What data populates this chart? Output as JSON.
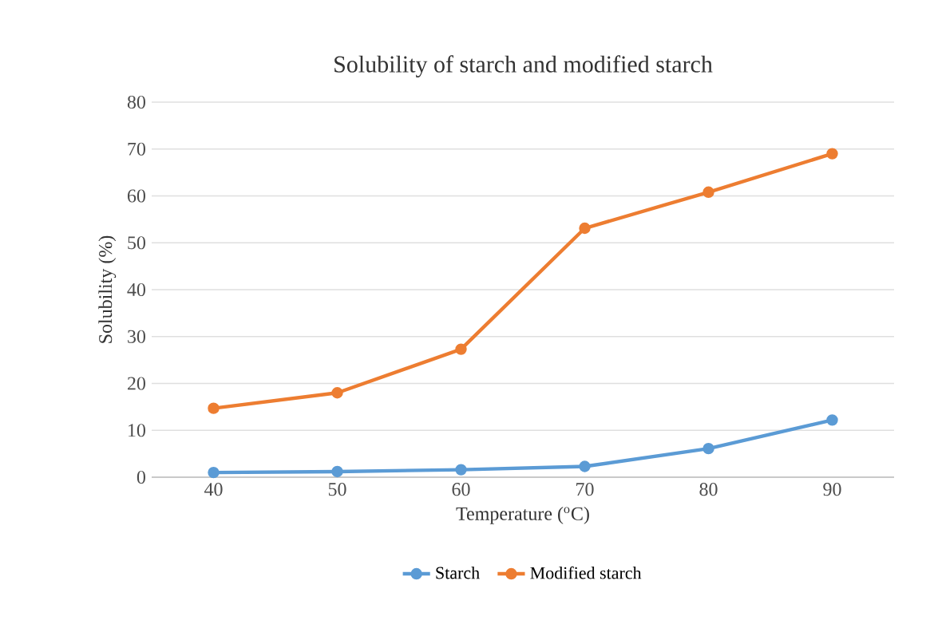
{
  "chart_data": {
    "type": "line",
    "title": "Solubility of starch and modified starch",
    "xlabel": "Temperature ($^{o}$C)",
    "ylabel": "Solubility (%)",
    "categories": [
      "40",
      "50",
      "60",
      "70",
      "80",
      "90"
    ],
    "series": [
      {
        "name": "Starch",
        "color": "#5b9bd5",
        "values": [
          1.0,
          1.2,
          1.6,
          2.3,
          6.1,
          12.2
        ]
      },
      {
        "name": "Modified starch",
        "color": "#ed7d31",
        "values": [
          14.7,
          18.0,
          27.3,
          53.1,
          60.8,
          69.0
        ]
      }
    ],
    "ylim": [
      0,
      80
    ],
    "yticks": [
      0,
      10,
      20,
      30,
      40,
      50,
      60,
      70,
      80
    ],
    "grid": "y",
    "legend": "bottom",
    "marker": "circle",
    "line_style": "solid"
  }
}
